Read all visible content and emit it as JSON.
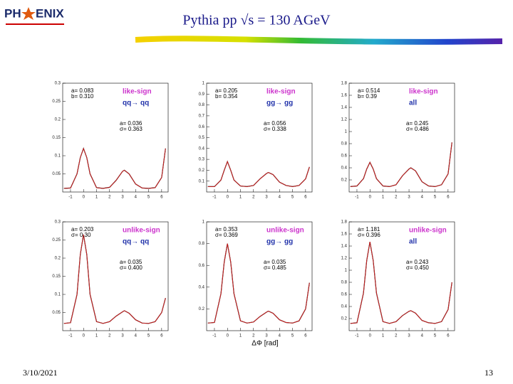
{
  "header": {
    "logo_left": "PH",
    "logo_right": "ENIX",
    "title": "Pythia pp √s = 130 AGeV"
  },
  "footer": {
    "date": "3/10/2021",
    "page": "13"
  },
  "chart_data": [
    {
      "type": "line",
      "color": "#000000",
      "fit_color": "#dd2222",
      "x": [
        -1.5,
        -1,
        -0.5,
        -0.25,
        0,
        0.25,
        0.5,
        1,
        1.5,
        2,
        2.5,
        3,
        3.14,
        3.5,
        4,
        4.5,
        5,
        5.5,
        6,
        6.3
      ],
      "values": [
        0.01,
        0.011,
        0.05,
        0.095,
        0.12,
        0.095,
        0.05,
        0.012,
        0.01,
        0.013,
        0.032,
        0.057,
        0.06,
        0.05,
        0.022,
        0.011,
        0.01,
        0.012,
        0.04,
        0.12
      ],
      "xlim": [
        -1.6,
        6.5
      ],
      "xticks": [
        -1,
        0,
        1,
        2,
        3,
        4,
        5,
        6
      ],
      "ylim": [
        0,
        0.3
      ],
      "yticks": [
        0.05,
        0.1,
        0.15,
        0.2,
        0.25,
        0.3
      ],
      "fit1": [
        "a= 0.083",
        "b= 0.310"
      ],
      "sign": "like-sign",
      "process": "qq→ qq",
      "fit2": [
        "a= 0.036",
        "σ= 0.363"
      ]
    },
    {
      "type": "line",
      "color": "#000000",
      "fit_color": "#dd2222",
      "x": [
        -1.5,
        -1,
        -0.5,
        -0.25,
        0,
        0.25,
        0.5,
        1,
        1.5,
        2,
        2.5,
        3,
        3.14,
        3.5,
        4,
        4.5,
        5,
        5.5,
        6,
        6.3
      ],
      "values": [
        0.05,
        0.05,
        0.11,
        0.2,
        0.28,
        0.2,
        0.11,
        0.055,
        0.05,
        0.06,
        0.12,
        0.17,
        0.18,
        0.16,
        0.09,
        0.06,
        0.05,
        0.06,
        0.12,
        0.23
      ],
      "xlim": [
        -1.6,
        6.5
      ],
      "xticks": [
        -1,
        0,
        1,
        2,
        3,
        4,
        5,
        6
      ],
      "ylim": [
        0,
        1
      ],
      "yticks": [
        0.1,
        0.2,
        0.3,
        0.4,
        0.5,
        0.6,
        0.7,
        0.8,
        0.9,
        1
      ],
      "fit1": [
        "a= 0.205",
        "b= 0.354"
      ],
      "sign": "like-sign",
      "process": "gg→ gg",
      "fit2": [
        "a= 0.056",
        "σ= 0.338"
      ]
    },
    {
      "type": "line",
      "color": "#000000",
      "fit_color": "#dd2222",
      "x": [
        -1.5,
        -1,
        -0.5,
        -0.25,
        0,
        0.25,
        0.5,
        1,
        1.5,
        2,
        2.5,
        3,
        3.14,
        3.5,
        4,
        4.5,
        5,
        5.5,
        6,
        6.3
      ],
      "values": [
        0.09,
        0.1,
        0.22,
        0.38,
        0.49,
        0.38,
        0.22,
        0.1,
        0.09,
        0.12,
        0.27,
        0.38,
        0.4,
        0.35,
        0.17,
        0.1,
        0.09,
        0.12,
        0.3,
        0.82
      ],
      "xlim": [
        -1.6,
        6.5
      ],
      "xticks": [
        -1,
        0,
        1,
        2,
        3,
        4,
        5,
        6
      ],
      "ylim": [
        0,
        1.8
      ],
      "yticks": [
        0.2,
        0.4,
        0.6,
        0.8,
        1,
        1.2,
        1.4,
        1.6,
        1.8
      ],
      "fit1": [
        "a= 0.514",
        "b= 0.39"
      ],
      "sign": "like-sign",
      "process": "all",
      "fit2": [
        "a= 0.245",
        "σ= 0.486"
      ]
    },
    {
      "type": "line",
      "color": "#000000",
      "fit_color": "#dd2222",
      "x": [
        -1.5,
        -1,
        -0.5,
        -0.25,
        0,
        0.25,
        0.5,
        1,
        1.5,
        2,
        2.5,
        3,
        3.14,
        3.5,
        4,
        4.5,
        5,
        5.5,
        6,
        6.3
      ],
      "values": [
        0.02,
        0.022,
        0.1,
        0.21,
        0.265,
        0.21,
        0.1,
        0.025,
        0.02,
        0.025,
        0.04,
        0.052,
        0.055,
        0.048,
        0.03,
        0.021,
        0.02,
        0.025,
        0.05,
        0.09
      ],
      "xlim": [
        -1.6,
        6.5
      ],
      "xticks": [
        -1,
        0,
        1,
        2,
        3,
        4,
        5,
        6
      ],
      "ylim": [
        0,
        0.3
      ],
      "yticks": [
        0.05,
        0.1,
        0.15,
        0.2,
        0.25,
        0.3
      ],
      "fit1": [
        "a= 0.203",
        "σ= 0.30"
      ],
      "sign": "unlike-sign",
      "process": "qq→ qq",
      "fit2": [
        "a= 0.035",
        "σ= 0.400"
      ]
    },
    {
      "type": "line",
      "color": "#000000",
      "fit_color": "#dd2222",
      "x": [
        -1.5,
        -1,
        -0.5,
        -0.25,
        0,
        0.25,
        0.5,
        1,
        1.5,
        2,
        2.5,
        3,
        3.14,
        3.5,
        4,
        4.5,
        5,
        5.5,
        6,
        6.3
      ],
      "values": [
        0.07,
        0.075,
        0.34,
        0.63,
        0.8,
        0.63,
        0.34,
        0.09,
        0.07,
        0.08,
        0.13,
        0.17,
        0.18,
        0.16,
        0.1,
        0.075,
        0.07,
        0.09,
        0.2,
        0.44
      ],
      "xlim": [
        -1.6,
        6.5
      ],
      "xticks": [
        -1,
        0,
        1,
        2,
        3,
        4,
        5,
        6
      ],
      "ylim": [
        0,
        1
      ],
      "yticks": [
        0.2,
        0.4,
        0.6,
        0.8,
        1
      ],
      "fit1": [
        "a= 0.353",
        "σ= 0.369"
      ],
      "sign": "unlike-sign",
      "process": "gg→ gg",
      "fit2": [
        "a= 0.035",
        "σ= 0.485"
      ],
      "xlabel": "ΔΦ [rad]"
    },
    {
      "type": "line",
      "color": "#000000",
      "fit_color": "#dd2222",
      "x": [
        -1.5,
        -1,
        -0.5,
        -0.25,
        0,
        0.25,
        0.5,
        1,
        1.5,
        2,
        2.5,
        3,
        3.14,
        3.5,
        4,
        4.5,
        5,
        5.5,
        6,
        6.3
      ],
      "values": [
        0.12,
        0.13,
        0.62,
        1.16,
        1.47,
        1.16,
        0.62,
        0.15,
        0.12,
        0.15,
        0.25,
        0.32,
        0.33,
        0.29,
        0.17,
        0.13,
        0.12,
        0.15,
        0.35,
        0.8
      ],
      "xlim": [
        -1.6,
        6.5
      ],
      "xticks": [
        -1,
        0,
        1,
        2,
        3,
        4,
        5,
        6
      ],
      "ylim": [
        0,
        1.8
      ],
      "yticks": [
        0.2,
        0.4,
        0.6,
        0.8,
        1,
        1.2,
        1.4,
        1.6,
        1.8
      ],
      "fit1": [
        "a= 1.181",
        "σ= 0.396"
      ],
      "sign": "unlike-sign",
      "process": "all",
      "fit2": [
        "a= 0.243",
        "σ= 0.450"
      ]
    }
  ]
}
